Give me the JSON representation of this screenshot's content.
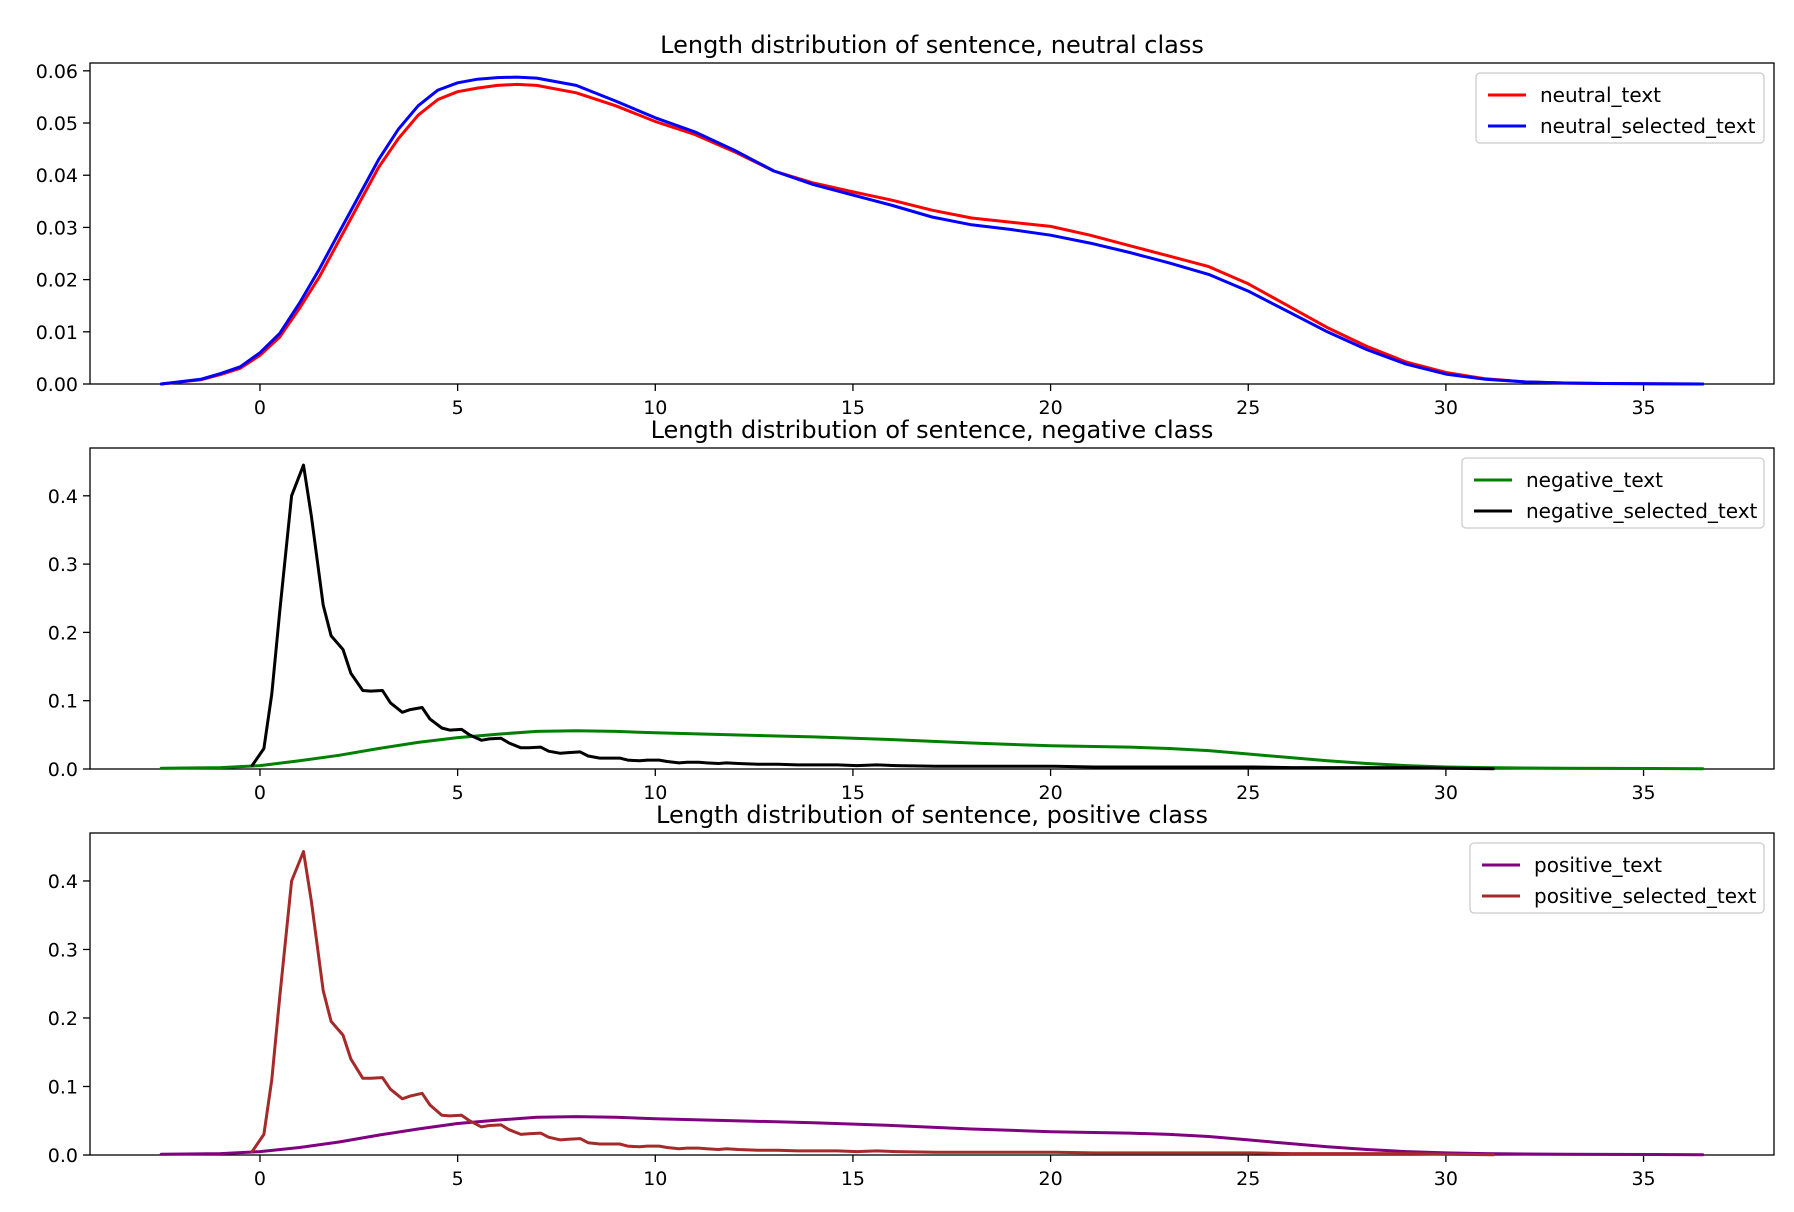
{
  "chart_data": [
    {
      "type": "line",
      "title": "Length distribution of sentence, neutral class",
      "xlim": [
        -4.3,
        38.3
      ],
      "ylim": [
        0,
        0.0615
      ],
      "xticks": [
        0,
        5,
        10,
        15,
        20,
        25,
        30,
        35
      ],
      "xtick_labels": [
        "0",
        "5",
        "10",
        "15",
        "20",
        "25",
        "30",
        "35"
      ],
      "yticks": [
        0,
        0.01,
        0.02,
        0.03,
        0.04,
        0.05,
        0.06
      ],
      "ytick_labels": [
        "0.00",
        "0.01",
        "0.02",
        "0.03",
        "0.04",
        "0.05",
        "0.06"
      ],
      "legend": "upper-right",
      "series": [
        {
          "name": "neutral_text",
          "color": "#ff0000",
          "x": [
            -2.5,
            -1.5,
            -1,
            -0.5,
            0,
            0.5,
            1,
            1.5,
            2,
            2.5,
            3,
            3.5,
            4,
            4.5,
            5,
            5.5,
            6,
            6.5,
            7,
            8,
            9,
            10,
            11,
            12,
            13,
            14,
            15,
            16,
            17,
            18,
            19,
            20,
            21,
            22,
            23,
            24,
            25,
            26,
            27,
            28,
            29,
            30,
            31,
            32,
            33,
            34,
            36.5
          ],
          "y": [
            0,
            0.0008,
            0.0018,
            0.003,
            0.0055,
            0.009,
            0.0145,
            0.0205,
            0.0275,
            0.0345,
            0.0415,
            0.047,
            0.0515,
            0.0545,
            0.056,
            0.0567,
            0.0572,
            0.0574,
            0.0572,
            0.0558,
            0.0533,
            0.0503,
            0.0478,
            0.0445,
            0.0408,
            0.0385,
            0.0368,
            0.0352,
            0.0333,
            0.0318,
            0.031,
            0.0302,
            0.0285,
            0.0265,
            0.0245,
            0.0225,
            0.0192,
            0.015,
            0.0108,
            0.0072,
            0.0042,
            0.0022,
            0.001,
            0.0004,
            0.0002,
            0.0001,
            0
          ]
        },
        {
          "name": "neutral_selected_text",
          "color": "#0000ff",
          "x": [
            -2.5,
            -1.5,
            -1,
            -0.5,
            0,
            0.5,
            1,
            1.5,
            2,
            2.5,
            3,
            3.5,
            4,
            4.5,
            5,
            5.5,
            6,
            6.5,
            7,
            8,
            9,
            10,
            11,
            12,
            13,
            14,
            15,
            16,
            17,
            18,
            19,
            20,
            21,
            22,
            23,
            24,
            25,
            26,
            27,
            28,
            29,
            30,
            31,
            32,
            33,
            34,
            36.5
          ],
          "y": [
            0,
            0.0009,
            0.002,
            0.0033,
            0.006,
            0.0097,
            0.0155,
            0.022,
            0.029,
            0.036,
            0.043,
            0.0488,
            0.0533,
            0.0563,
            0.0577,
            0.0584,
            0.0587,
            0.0588,
            0.0586,
            0.0572,
            0.0542,
            0.051,
            0.0483,
            0.0448,
            0.0408,
            0.0382,
            0.0362,
            0.0342,
            0.032,
            0.0305,
            0.0296,
            0.0285,
            0.027,
            0.0252,
            0.0232,
            0.021,
            0.0178,
            0.0139,
            0.01,
            0.0066,
            0.0038,
            0.0019,
            0.0009,
            0.0004,
            0.0002,
            0.0001,
            0
          ]
        }
      ]
    },
    {
      "type": "line",
      "title": "Length distribution of sentence, negative class",
      "xlim": [
        -4.3,
        38.3
      ],
      "ylim": [
        0,
        0.47
      ],
      "xticks": [
        0,
        5,
        10,
        15,
        20,
        25,
        30,
        35
      ],
      "xtick_labels": [
        "0",
        "5",
        "10",
        "15",
        "20",
        "25",
        "30",
        "35"
      ],
      "yticks": [
        0,
        0.1,
        0.2,
        0.3,
        0.4
      ],
      "ytick_labels": [
        "0.0",
        "0.1",
        "0.2",
        "0.3",
        "0.4"
      ],
      "legend": "upper-right",
      "series": [
        {
          "name": "negative_text",
          "color": "#008000",
          "x": [
            -2.5,
            -1,
            0,
            1,
            2,
            3,
            4,
            5,
            6,
            7,
            8,
            9,
            10,
            12,
            14,
            16,
            18,
            20,
            22,
            23,
            24,
            25,
            26,
            27,
            28,
            29,
            30,
            31,
            33,
            36.5
          ],
          "y": [
            0.001,
            0.002,
            0.005,
            0.012,
            0.02,
            0.03,
            0.039,
            0.046,
            0.051,
            0.055,
            0.056,
            0.055,
            0.053,
            0.05,
            0.047,
            0.043,
            0.038,
            0.034,
            0.032,
            0.03,
            0.027,
            0.022,
            0.017,
            0.012,
            0.008,
            0.005,
            0.003,
            0.002,
            0.001,
            0.0005
          ]
        },
        {
          "name": "negative_selected_text",
          "color": "#000000",
          "x": [
            -0.2,
            0.1,
            0.3,
            0.5,
            0.8,
            1.1,
            1.3,
            1.6,
            1.8,
            2.1,
            2.3,
            2.6,
            2.8,
            3.1,
            3.3,
            3.6,
            3.8,
            4.1,
            4.3,
            4.6,
            4.8,
            5.1,
            5.3,
            5.6,
            5.8,
            6.1,
            6.3,
            6.6,
            6.8,
            7.1,
            7.3,
            7.6,
            7.8,
            8.1,
            8.3,
            8.6,
            8.8,
            9.1,
            9.3,
            9.6,
            9.8,
            10.1,
            10.3,
            10.6,
            10.8,
            11.1,
            11.3,
            11.6,
            11.8,
            12.1,
            12.6,
            13.1,
            13.6,
            14.1,
            14.6,
            15.1,
            15.6,
            16.1,
            17.1,
            18.1,
            19.1,
            20.1,
            21.1,
            22.1,
            23.1,
            24.1,
            25.1,
            26.1,
            27.1,
            28.1,
            29.1,
            30.1,
            31.2
          ],
          "y": [
            0.005,
            0.03,
            0.11,
            0.23,
            0.4,
            0.445,
            0.37,
            0.24,
            0.195,
            0.175,
            0.14,
            0.115,
            0.114,
            0.115,
            0.097,
            0.083,
            0.087,
            0.09,
            0.073,
            0.06,
            0.057,
            0.058,
            0.05,
            0.042,
            0.044,
            0.045,
            0.038,
            0.031,
            0.031,
            0.032,
            0.026,
            0.023,
            0.024,
            0.025,
            0.019,
            0.016,
            0.016,
            0.016,
            0.013,
            0.012,
            0.013,
            0.013,
            0.011,
            0.009,
            0.01,
            0.01,
            0.009,
            0.008,
            0.009,
            0.008,
            0.007,
            0.007,
            0.006,
            0.006,
            0.006,
            0.005,
            0.006,
            0.005,
            0.004,
            0.004,
            0.004,
            0.004,
            0.003,
            0.003,
            0.003,
            0.003,
            0.003,
            0.002,
            0.002,
            0.002,
            0.002,
            0.001,
            0.0005
          ]
        }
      ]
    },
    {
      "type": "line",
      "title": "Length distribution of sentence, positive class",
      "xlim": [
        -4.3,
        38.3
      ],
      "ylim": [
        0,
        0.47
      ],
      "xticks": [
        0,
        5,
        10,
        15,
        20,
        25,
        30,
        35
      ],
      "xtick_labels": [
        "0",
        "5",
        "10",
        "15",
        "20",
        "25",
        "30",
        "35"
      ],
      "yticks": [
        0,
        0.1,
        0.2,
        0.3,
        0.4
      ],
      "ytick_labels": [
        "0.0",
        "0.1",
        "0.2",
        "0.3",
        "0.4"
      ],
      "legend": "upper-right",
      "series": [
        {
          "name": "positive_text",
          "color": "#800080",
          "x": [
            -2.5,
            -1,
            0,
            1,
            2,
            3,
            4,
            5,
            6,
            7,
            8,
            9,
            10,
            12,
            14,
            16,
            18,
            20,
            22,
            23,
            24,
            25,
            26,
            27,
            28,
            29,
            30,
            31,
            33,
            36.5
          ],
          "y": [
            0.001,
            0.002,
            0.005,
            0.011,
            0.019,
            0.029,
            0.038,
            0.046,
            0.051,
            0.055,
            0.056,
            0.055,
            0.053,
            0.05,
            0.047,
            0.043,
            0.038,
            0.034,
            0.032,
            0.03,
            0.027,
            0.022,
            0.017,
            0.012,
            0.008,
            0.005,
            0.003,
            0.002,
            0.001,
            0.0005
          ]
        },
        {
          "name": "positive_selected_text",
          "color": "#a52a2a",
          "x": [
            -0.2,
            0.1,
            0.3,
            0.5,
            0.8,
            1.1,
            1.3,
            1.6,
            1.8,
            2.1,
            2.3,
            2.6,
            2.8,
            3.1,
            3.3,
            3.6,
            3.8,
            4.1,
            4.3,
            4.6,
            4.8,
            5.1,
            5.3,
            5.6,
            5.8,
            6.1,
            6.3,
            6.6,
            6.8,
            7.1,
            7.3,
            7.6,
            7.8,
            8.1,
            8.3,
            8.6,
            8.8,
            9.1,
            9.3,
            9.6,
            9.8,
            10.1,
            10.3,
            10.6,
            10.8,
            11.1,
            11.3,
            11.6,
            11.8,
            12.1,
            12.6,
            13.1,
            13.6,
            14.1,
            14.6,
            15.1,
            15.6,
            16.1,
            17.1,
            18.1,
            19.1,
            20.1,
            21.1,
            22.1,
            23.1,
            24.1,
            25.1,
            26.1,
            27.1,
            28.1,
            29.1,
            30.1,
            31.2
          ],
          "y": [
            0.005,
            0.03,
            0.11,
            0.23,
            0.4,
            0.443,
            0.37,
            0.24,
            0.195,
            0.175,
            0.14,
            0.112,
            0.112,
            0.113,
            0.096,
            0.082,
            0.086,
            0.09,
            0.073,
            0.058,
            0.057,
            0.058,
            0.05,
            0.041,
            0.043,
            0.044,
            0.037,
            0.03,
            0.031,
            0.032,
            0.026,
            0.022,
            0.023,
            0.024,
            0.018,
            0.016,
            0.016,
            0.016,
            0.013,
            0.012,
            0.013,
            0.013,
            0.011,
            0.009,
            0.01,
            0.01,
            0.009,
            0.008,
            0.009,
            0.008,
            0.007,
            0.007,
            0.006,
            0.006,
            0.006,
            0.005,
            0.006,
            0.005,
            0.004,
            0.004,
            0.004,
            0.004,
            0.003,
            0.003,
            0.003,
            0.003,
            0.003,
            0.002,
            0.002,
            0.002,
            0.002,
            0.001,
            0.0005
          ]
        }
      ]
    }
  ]
}
